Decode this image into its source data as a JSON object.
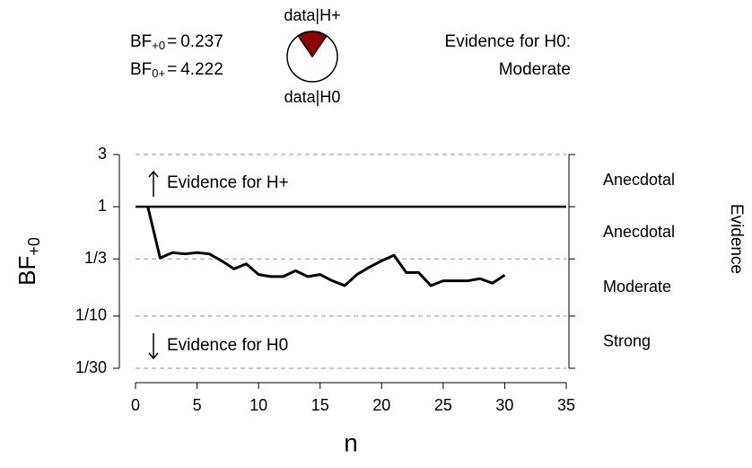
{
  "chart_data": {
    "type": "line",
    "summary": [
      {
        "label": "BF",
        "subscript": "+0",
        "operator": "=",
        "value": 0.237
      },
      {
        "label": "BF",
        "subscript": "0+",
        "operator": "=",
        "value": 4.222
      }
    ],
    "pie_labels": [
      "data|H+",
      "data|H0"
    ],
    "pie_colors": [
      "#8b0000",
      "#ffffff"
    ],
    "verdict": [
      "Evidence for H0:",
      "Moderate"
    ],
    "xlabel": "n",
    "ylabel": {
      "label": "BF",
      "subscript": "+0"
    },
    "right_axis_label": "Evidence",
    "evidence_labels": [
      "Anecdotal",
      "Anecdotal",
      "Moderate",
      "Strong"
    ],
    "annotations": [
      "Evidence for H+",
      "Evidence for H0"
    ],
    "x": [
      1,
      2,
      3,
      4,
      5,
      6,
      7,
      8,
      9,
      10,
      11,
      12,
      13,
      14,
      15,
      16,
      17,
      18,
      19,
      20,
      21,
      22,
      23,
      24,
      25,
      26,
      27,
      28,
      29,
      30
    ],
    "series": [
      {
        "name": "BF",
        "color": "#000000",
        "values": [
          1,
          0.34,
          0.38,
          0.37,
          0.38,
          0.37,
          0.32,
          0.27,
          0.3,
          0.24,
          0.23,
          0.23,
          0.26,
          0.23,
          0.24,
          0.21,
          0.19,
          0.24,
          0.28,
          0.32,
          0.36,
          0.25,
          0.25,
          0.19,
          0.21,
          0.21,
          0.21,
          0.22,
          0.2,
          0.237
        ]
      }
    ],
    "xlim": [
      0,
      35
    ],
    "xticks": [
      0,
      5,
      10,
      15,
      20,
      25,
      30,
      35
    ],
    "ylim": [
      0.033333,
      3
    ],
    "yticks": [
      3,
      1,
      {
        "value": 0.333333,
        "label": "1/3"
      },
      {
        "value": 0.1,
        "label": "1/10"
      },
      {
        "value": 0.033333,
        "label": "1/30"
      }
    ],
    "log_y": true,
    "grid": true
  }
}
